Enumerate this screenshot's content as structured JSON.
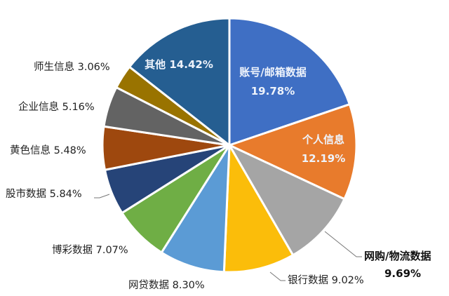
{
  "chart_data": {
    "type": "pie",
    "title": "",
    "start_angle": "12 o'clock",
    "direction": "clockwise",
    "categories": [
      "账号/邮箱数据",
      "个人信息",
      "网购/物流数据",
      "银行数据",
      "网贷数据",
      "博彩数据",
      "股市数据",
      "黄色信息",
      "企业信息",
      "师生信息",
      "其他"
    ],
    "values": [
      19.78,
      12.19,
      9.69,
      9.02,
      8.3,
      7.07,
      5.84,
      5.48,
      5.16,
      3.06,
      14.42
    ],
    "labels": [
      "账号/邮箱数据 19.78%",
      "个人信息 12.19%",
      "网购/物流数据 9.69%",
      "银行数据 9.02%",
      "网贷数据 8.30%",
      "博彩数据 7.07%",
      "股市数据 5.84%",
      "黄色信息 5.48%",
      "企业信息 5.16%",
      "师生信息 3.06%",
      "其他 14.42%"
    ],
    "colors": [
      "#3f6fc4",
      "#e87b2c",
      "#a5a5a5",
      "#fbbd0a",
      "#5b9bd5",
      "#6fae45",
      "#264478",
      "#9e480e",
      "#636363",
      "#997300",
      "#255e91"
    ],
    "legend": "none (labels on/near slices)"
  },
  "slices": [
    {
      "name": "账号/邮箱数据",
      "pct": "19.78%",
      "value": 19.78,
      "color": "#3f6fc4",
      "label_pos": "inside"
    },
    {
      "name": "个人信息",
      "pct": "12.19%",
      "value": 12.19,
      "color": "#e87b2c",
      "label_pos": "inside"
    },
    {
      "name": "网购/物流数据",
      "pct": "9.69%",
      "value": 9.69,
      "color": "#a5a5a5",
      "label_pos": "outside-bold"
    },
    {
      "name": "银行数据",
      "pct": "9.02%",
      "value": 9.02,
      "color": "#fbbd0a",
      "label_pos": "outside"
    },
    {
      "name": "网贷数据",
      "pct": "8.30%",
      "value": 8.3,
      "color": "#5b9bd5",
      "label_pos": "outside"
    },
    {
      "name": "博彩数据",
      "pct": "7.07%",
      "value": 7.07,
      "color": "#6fae45",
      "label_pos": "outside"
    },
    {
      "name": "股市数据",
      "pct": "5.84%",
      "value": 5.84,
      "color": "#264478",
      "label_pos": "outside"
    },
    {
      "name": "黄色信息",
      "pct": "5.48%",
      "value": 5.48,
      "color": "#9e480e",
      "label_pos": "outside"
    },
    {
      "name": "企业信息",
      "pct": "5.16%",
      "value": 5.16,
      "color": "#636363",
      "label_pos": "outside"
    },
    {
      "name": "师生信息",
      "pct": "3.06%",
      "value": 3.06,
      "color": "#997300",
      "label_pos": "outside"
    },
    {
      "name": "其他",
      "pct": "14.42%",
      "value": 14.42,
      "color": "#255e91",
      "label_pos": "inside"
    }
  ]
}
